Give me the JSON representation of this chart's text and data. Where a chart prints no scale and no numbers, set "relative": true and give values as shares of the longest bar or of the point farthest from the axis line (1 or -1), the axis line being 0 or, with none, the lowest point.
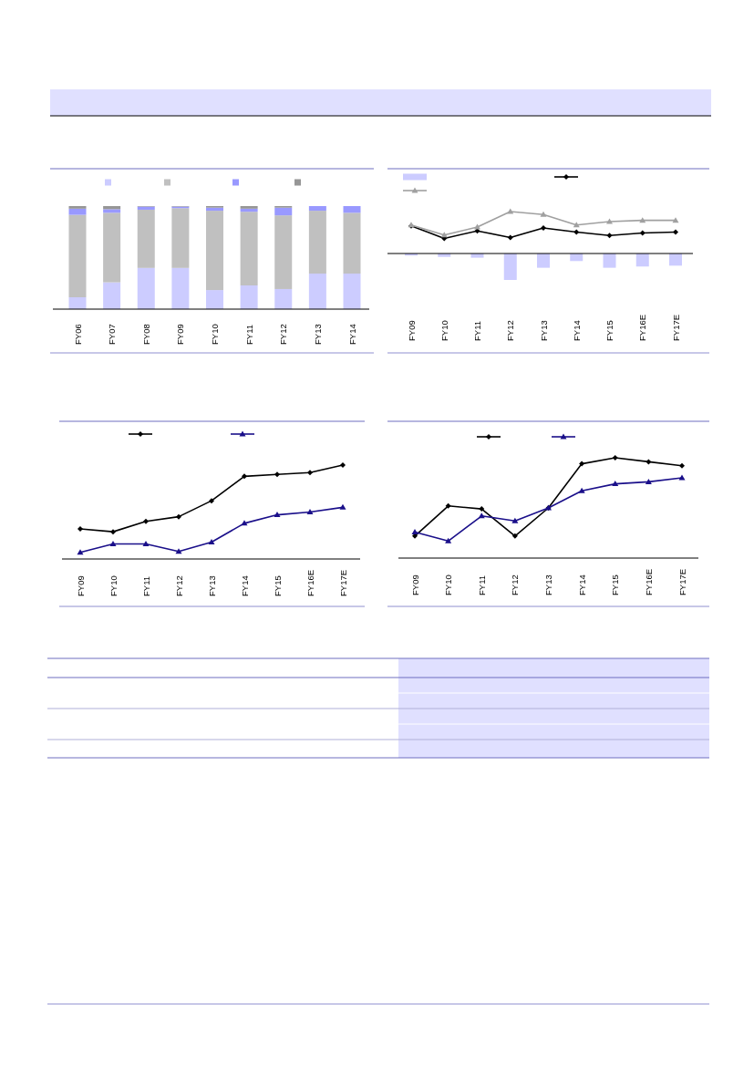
{
  "chart_data": [
    {
      "type": "bar",
      "stacked": true,
      "relative": true,
      "categories": [
        "FY06",
        "FY07",
        "FY08",
        "FY09",
        "FY10",
        "FY11",
        "FY12",
        "FY13",
        "FY14"
      ],
      "series": [
        {
          "color": "#ccccff",
          "values": [
            0.115,
            0.26,
            0.4,
            0.4,
            0.185,
            0.23,
            0.195,
            0.345,
            0.345
          ]
        },
        {
          "color": "#c0c0c0",
          "values": [
            0.8,
            0.675,
            0.565,
            0.58,
            0.77,
            0.715,
            0.715,
            0.61,
            0.59
          ]
        },
        {
          "color": "#9999ff",
          "values": [
            0.06,
            0.035,
            0.03,
            0.015,
            0.03,
            0.03,
            0.075,
            0.045,
            0.065
          ]
        },
        {
          "color": "#969696",
          "values": [
            0.025,
            0.03,
            0.005,
            0.005,
            0.015,
            0.025,
            0.015,
            0,
            0
          ]
        }
      ]
    },
    {
      "type": "bar",
      "relative": true,
      "categories": [
        "FY09",
        "FY10",
        "FY11",
        "FY12",
        "FY13",
        "FY14",
        "FY15",
        "FY16E",
        "FY17E"
      ],
      "series": [
        {
          "color": "#ccccff",
          "values": [
            -0.05,
            -0.08,
            -0.1,
            -0.63,
            -0.34,
            -0.18,
            -0.34,
            -0.31,
            -0.29
          ]
        },
        {
          "type": "line",
          "marker": "diamond",
          "color": "#000000",
          "values": [
            0.66,
            0.36,
            0.54,
            0.38,
            0.61,
            0.51,
            0.43,
            0.49,
            0.51
          ]
        },
        {
          "type": "line",
          "marker": "triangle",
          "color": "#a0a0a0",
          "values": [
            0.68,
            0.44,
            0.63,
            1,
            0.93,
            0.68,
            0.76,
            0.79,
            0.79
          ]
        }
      ]
    },
    {
      "type": "line",
      "relative": true,
      "categories": [
        "FY09",
        "FY10",
        "FY11",
        "FY12",
        "FY13",
        "FY14",
        "FY15",
        "FY16E",
        "FY17E"
      ],
      "series": [
        {
          "marker": "diamond",
          "color": "#000000",
          "values": [
            0.32,
            0.29,
            0.4,
            0.45,
            0.62,
            0.88,
            0.9,
            0.92,
            1
          ]
        },
        {
          "marker": "triangle",
          "color": "#1a0f8a",
          "values": [
            0.07,
            0.16,
            0.16,
            0.08,
            0.18,
            0.38,
            0.47,
            0.5,
            0.55
          ]
        }
      ]
    },
    {
      "type": "line",
      "relative": true,
      "categories": [
        "FY09",
        "FY10",
        "FY11",
        "FY12",
        "FY13",
        "FY14",
        "FY15",
        "FY16E",
        "FY17E"
      ],
      "series": [
        {
          "marker": "diamond",
          "color": "#000000",
          "values": [
            0.22,
            0.52,
            0.49,
            0.22,
            0.5,
            0.94,
            1,
            0.96,
            0.92
          ]
        },
        {
          "marker": "triangle",
          "color": "#1a0f8a",
          "values": [
            0.26,
            0.17,
            0.42,
            0.37,
            0.5,
            0.67,
            0.74,
            0.76,
            0.8
          ]
        }
      ]
    }
  ]
}
